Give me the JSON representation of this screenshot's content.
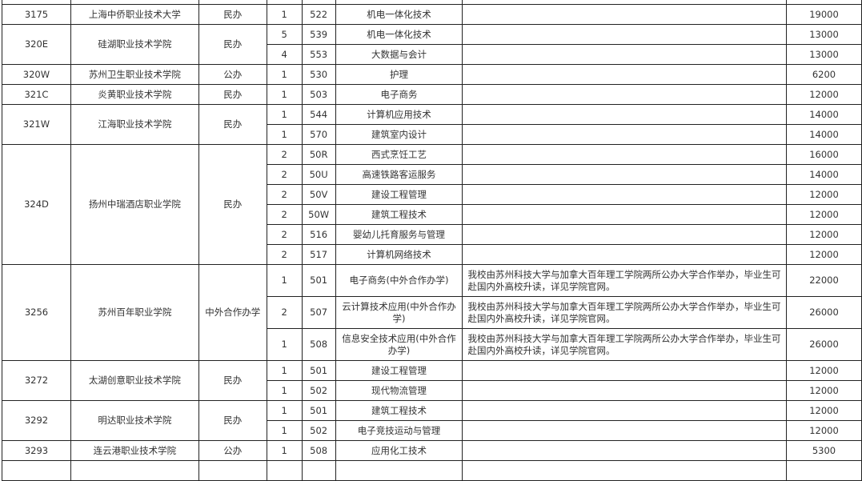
{
  "table": {
    "groups": [
      {
        "code": "3175",
        "school": "上海中侨职业技术大学",
        "type": "民办",
        "rows": [
          {
            "count": "1",
            "major_code": "522",
            "major": "机电一体化技术",
            "note": "",
            "fee": "19000"
          }
        ]
      },
      {
        "code": "320E",
        "school": "硅湖职业技术学院",
        "type": "民办",
        "rows": [
          {
            "count": "5",
            "major_code": "539",
            "major": "机电一体化技术",
            "note": "",
            "fee": "13000"
          },
          {
            "count": "4",
            "major_code": "553",
            "major": "大数据与会计",
            "note": "",
            "fee": "13000"
          }
        ]
      },
      {
        "code": "320W",
        "school": "苏州卫生职业技术学院",
        "type": "公办",
        "rows": [
          {
            "count": "1",
            "major_code": "530",
            "major": "护理",
            "note": "",
            "fee": "6200"
          }
        ]
      },
      {
        "code": "321C",
        "school": "炎黄职业技术学院",
        "type": "民办",
        "rows": [
          {
            "count": "1",
            "major_code": "503",
            "major": "电子商务",
            "note": "",
            "fee": "12000"
          }
        ]
      },
      {
        "code": "321W",
        "school": "江海职业技术学院",
        "type": "民办",
        "rows": [
          {
            "count": "1",
            "major_code": "544",
            "major": "计算机应用技术",
            "note": "",
            "fee": "14000"
          },
          {
            "count": "1",
            "major_code": "570",
            "major": "建筑室内设计",
            "note": "",
            "fee": "14000"
          }
        ]
      },
      {
        "code": "324D",
        "school": "扬州中瑞酒店职业学院",
        "type": "民办",
        "rows": [
          {
            "count": "2",
            "major_code": "50R",
            "major": "西式烹饪工艺",
            "note": "",
            "fee": "16000"
          },
          {
            "count": "2",
            "major_code": "50U",
            "major": "高速铁路客运服务",
            "note": "",
            "fee": "14000"
          },
          {
            "count": "2",
            "major_code": "50V",
            "major": "建设工程管理",
            "note": "",
            "fee": "12000"
          },
          {
            "count": "2",
            "major_code": "50W",
            "major": "建筑工程技术",
            "note": "",
            "fee": "12000"
          },
          {
            "count": "2",
            "major_code": "516",
            "major": "婴幼儿托育服务与管理",
            "note": "",
            "fee": "12000"
          },
          {
            "count": "2",
            "major_code": "517",
            "major": "计算机网络技术",
            "note": "",
            "fee": "12000"
          }
        ]
      },
      {
        "code": "3256",
        "school": "苏州百年职业学院",
        "type": "中外合作办学",
        "rows": [
          {
            "count": "1",
            "major_code": "501",
            "major": "电子商务(中外合作办学)",
            "note": "我校由苏州科技大学与加拿大百年理工学院两所公办大学合作举办，毕业生可赴国内外高校升读，详见学院官网。",
            "fee": "22000"
          },
          {
            "count": "2",
            "major_code": "507",
            "major": "云计算技术应用(中外合作办学)",
            "note": "我校由苏州科技大学与加拿大百年理工学院两所公办大学合作举办，毕业生可赴国内外高校升读，详见学院官网。",
            "fee": "26000"
          },
          {
            "count": "1",
            "major_code": "508",
            "major": "信息安全技术应用(中外合作办学)",
            "note": "我校由苏州科技大学与加拿大百年理工学院两所公办大学合作举办，毕业生可赴国内外高校升读，详见学院官网。",
            "fee": "26000"
          }
        ]
      },
      {
        "code": "3272",
        "school": "太湖创意职业技术学院",
        "type": "民办",
        "rows": [
          {
            "count": "1",
            "major_code": "501",
            "major": "建设工程管理",
            "note": "",
            "fee": "12000"
          },
          {
            "count": "1",
            "major_code": "502",
            "major": "现代物流管理",
            "note": "",
            "fee": "12000"
          }
        ]
      },
      {
        "code": "3292",
        "school": "明达职业技术学院",
        "type": "民办",
        "rows": [
          {
            "count": "1",
            "major_code": "501",
            "major": "建筑工程技术",
            "note": "",
            "fee": "12000"
          },
          {
            "count": "1",
            "major_code": "502",
            "major": "电子竞技运动与管理",
            "note": "",
            "fee": "12000"
          }
        ]
      },
      {
        "code": "3293",
        "school": "连云港职业技术学院",
        "type": "公办",
        "rows": [
          {
            "count": "1",
            "major_code": "508",
            "major": "应用化工技术",
            "note": "",
            "fee": "5300"
          }
        ]
      }
    ]
  }
}
